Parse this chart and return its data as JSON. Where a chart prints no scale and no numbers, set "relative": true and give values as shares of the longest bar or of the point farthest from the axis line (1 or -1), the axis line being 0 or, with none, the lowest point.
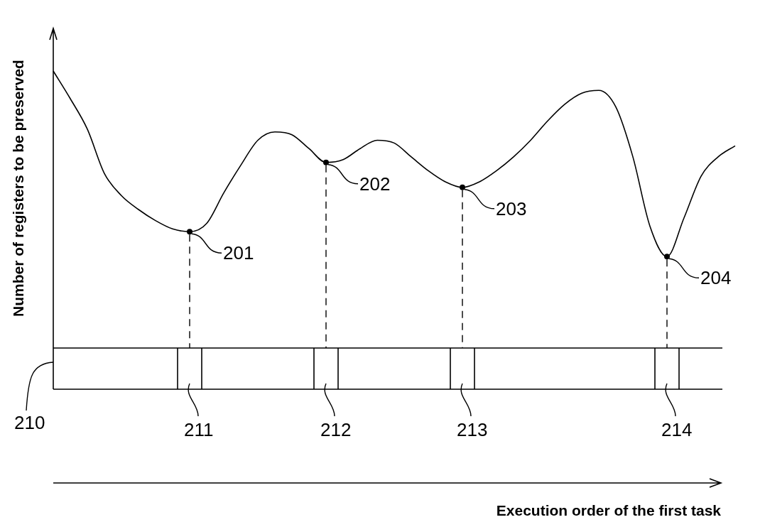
{
  "chart_data": {
    "type": "line",
    "relative": true,
    "ylabel": "Number of registers to be preserved",
    "categories": [
      null,
      null,
      null,
      null,
      null,
      null,
      null,
      null,
      null,
      null,
      null,
      null,
      null,
      null,
      null,
      null,
      null,
      null,
      null,
      null,
      null,
      null,
      null,
      null,
      null,
      null,
      null,
      null,
      null,
      null,
      null,
      null,
      null,
      null,
      null,
      null,
      null,
      null,
      null,
      null,
      null
    ],
    "values": [
      1.0,
      0.9,
      0.79,
      0.63,
      0.55,
      0.5,
      0.46,
      0.43,
      0.42,
      0.45,
      0.56,
      0.66,
      0.75,
      0.78,
      0.77,
      0.72,
      0.67,
      0.68,
      0.72,
      0.75,
      0.74,
      0.69,
      0.64,
      0.6,
      0.58,
      0.6,
      0.64,
      0.69,
      0.75,
      0.82,
      0.88,
      0.92,
      0.93,
      0.87,
      0.69,
      0.44,
      0.33,
      0.47,
      0.62,
      0.69,
      0.73
    ],
    "color": "#000000",
    "annotations": [
      "201",
      "202",
      "203",
      "204",
      "210",
      "211",
      "212",
      "213",
      "214",
      "Execution order of the first task"
    ],
    "legend": false,
    "tick_labels": false
  }
}
